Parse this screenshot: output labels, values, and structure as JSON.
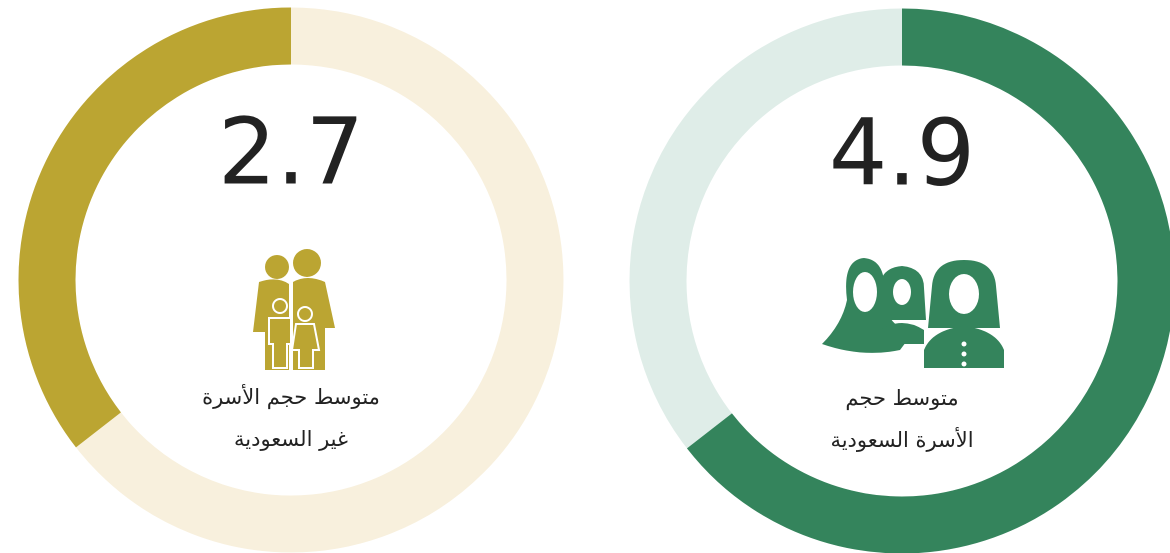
{
  "chart_data": [
    {
      "type": "gauge",
      "value": 2.7,
      "lim": [
        0,
        7.6
      ],
      "direction": "counterclockwise",
      "color": "#bba532",
      "track_color": "#f8f0dd",
      "label": [
        "متوسط حجم الأسرة",
        "غير السعودية"
      ]
    },
    {
      "type": "gauge",
      "value": 4.9,
      "lim": [
        0,
        7.6
      ],
      "direction": "clockwise",
      "color": "#34845c",
      "track_color": "#dfede8",
      "label": [
        "متوسط حجم",
        "الأسرة السعودية"
      ]
    }
  ]
}
